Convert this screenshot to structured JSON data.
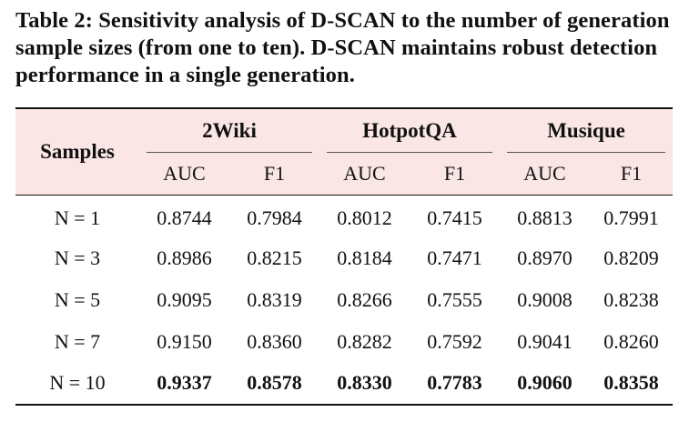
{
  "caption": "Table 2: Sensitivity analysis of D-SCAN to the number of generation sample sizes (from one to ten). D-SCAN maintains robust detection performance in a single generation.",
  "table": {
    "row_header": "Samples",
    "groups": [
      "2Wiki",
      "HotpotQA",
      "Musique"
    ],
    "metrics": [
      "AUC",
      "F1",
      "AUC",
      "F1",
      "AUC",
      "F1"
    ],
    "rows": [
      {
        "label": "N = 1",
        "values": [
          "0.8744",
          "0.7984",
          "0.8012",
          "0.7415",
          "0.8813",
          "0.7991"
        ]
      },
      {
        "label": "N = 3",
        "values": [
          "0.8986",
          "0.8215",
          "0.8184",
          "0.7471",
          "0.8970",
          "0.8209"
        ]
      },
      {
        "label": "N = 5",
        "values": [
          "0.9095",
          "0.8319",
          "0.8266",
          "0.7555",
          "0.9008",
          "0.8238"
        ]
      },
      {
        "label": "N = 7",
        "values": [
          "0.9150",
          "0.8360",
          "0.8282",
          "0.7592",
          "0.9041",
          "0.8260"
        ]
      },
      {
        "label": "N = 10",
        "values": [
          "0.9337",
          "0.8578",
          "0.8330",
          "0.7783",
          "0.9060",
          "0.8358"
        ]
      }
    ]
  },
  "colors": {
    "header_background": "#fbe6e6",
    "rule": "#111111"
  }
}
